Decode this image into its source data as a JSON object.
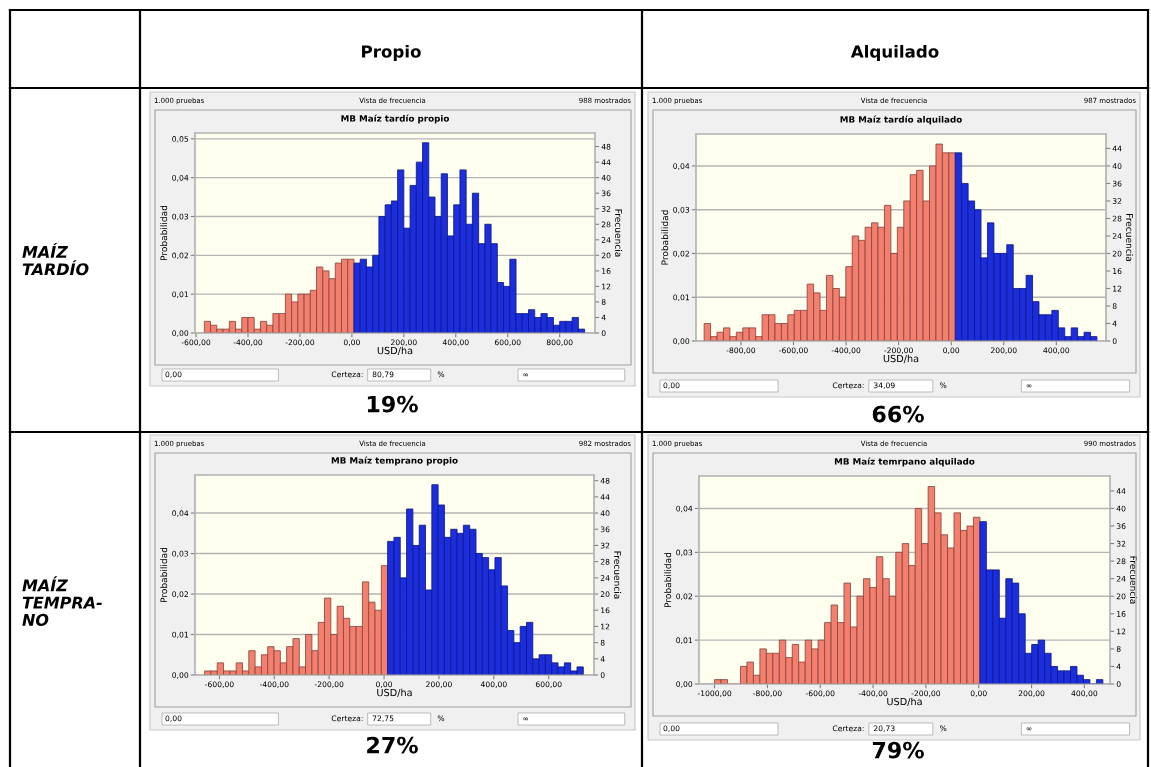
{
  "chart_data": [
    {
      "type": "other",
      "annotations": [
        "Propio",
        "Alquilado",
        "MAÍZ\nTARDÍO",
        "MAÍZ\nTEMPRA-\nNO"
      ]
    },
    {
      "type": "histogram",
      "title": "MB Maíz tardío propio",
      "xlabel": "USD/ha",
      "ylabel": "Probabilidad",
      "y2label": "Frecuencia",
      "bins": [
        -568,
        -544,
        -520,
        -496,
        -472,
        -448,
        -424,
        -400,
        -376,
        -352,
        -328,
        -304,
        -280,
        -256,
        -232,
        -208,
        -184,
        -160,
        -136,
        -112,
        -88,
        -64,
        -40,
        -16,
        8,
        32,
        56,
        80,
        104,
        128,
        152,
        176,
        200,
        224,
        248,
        272,
        296,
        320,
        344,
        368,
        392,
        416,
        440,
        464,
        488,
        512,
        536,
        560,
        584,
        608,
        632,
        656,
        680,
        704,
        728,
        752,
        776,
        800,
        824,
        848,
        872,
        896
      ],
      "values": [
        0.003,
        0.002,
        0.001,
        0.001,
        0.003,
        0.001,
        0.004,
        0.004,
        0.001,
        0.003,
        0.002,
        0.005,
        0.005,
        0.01,
        0.008,
        0.01,
        0.01,
        0.011,
        0.017,
        0.016,
        0.014,
        0.018,
        0.019,
        0.019,
        0.018,
        0.019,
        0.017,
        0.02,
        0.03,
        0.033,
        0.034,
        0.042,
        0.027,
        0.038,
        0.044,
        0.049,
        0.035,
        0.03,
        0.041,
        0.025,
        0.033,
        0.042,
        0.028,
        0.036,
        0.023,
        0.028,
        0.023,
        0.013,
        0.012,
        0.019,
        0.005,
        0.005,
        0.006,
        0.004,
        0.005,
        0.004,
        0.002,
        0.003,
        0.003,
        0.004,
        0.001
      ],
      "colors": [
        "#f47f6e",
        "#f47f6e",
        "#f47f6e",
        "#f47f6e",
        "#f47f6e",
        "#f47f6e",
        "#f47f6e",
        "#f47f6e",
        "#f47f6e",
        "#f47f6e",
        "#f47f6e",
        "#f47f6e",
        "#f47f6e",
        "#f47f6e",
        "#f47f6e",
        "#f47f6e",
        "#f47f6e",
        "#f47f6e",
        "#f47f6e",
        "#f47f6e",
        "#f47f6e",
        "#f47f6e",
        "#f47f6e",
        "#f47f6e",
        "#1c2de0",
        "#1c2de0",
        "#1c2de0",
        "#1c2de0",
        "#1c2de0",
        "#1c2de0",
        "#1c2de0",
        "#1c2de0",
        "#1c2de0",
        "#1c2de0",
        "#1c2de0",
        "#1c2de0",
        "#1c2de0",
        "#1c2de0",
        "#1c2de0",
        "#1c2de0",
        "#1c2de0",
        "#1c2de0",
        "#1c2de0",
        "#1c2de0",
        "#1c2de0",
        "#1c2de0",
        "#1c2de0",
        "#1c2de0",
        "#1c2de0",
        "#1c2de0",
        "#1c2de0",
        "#1c2de0",
        "#1c2de0",
        "#1c2de0",
        "#1c2de0",
        "#1c2de0",
        "#1c2de0",
        "#1c2de0",
        "#1c2de0",
        "#1c2de0",
        "#1c2de0"
      ],
      "xlim": [
        -604,
        936
      ],
      "xticks": [
        {
          "value": -600,
          "label": "-600,00"
        },
        {
          "value": -400,
          "label": "-400,00"
        },
        {
          "value": -200,
          "label": "-200,00"
        },
        {
          "value": 0,
          "label": "0,00"
        },
        {
          "value": 200,
          "label": "200,00"
        },
        {
          "value": 400,
          "label": "400,00"
        },
        {
          "value": 600,
          "label": "600,00"
        },
        {
          "value": 800,
          "label": "800,00"
        }
      ],
      "ylim": [
        0,
        0.0515
      ],
      "yticks": [
        {
          "value": 0,
          "label": "0,00"
        },
        {
          "value": 0.01,
          "label": "0,01"
        },
        {
          "value": 0.02,
          "label": "0,02"
        },
        {
          "value": 0.03,
          "label": "0,03"
        },
        {
          "value": 0.04,
          "label": "0,04"
        },
        {
          "value": 0.05,
          "label": "0,05"
        }
      ],
      "y2lim": [
        0,
        51.5
      ],
      "y2ticks": [
        0,
        4,
        8,
        12,
        16,
        20,
        24,
        28,
        32,
        36,
        40,
        44,
        48
      ],
      "grid": "y",
      "annotations": [
        "1.000 pruebas",
        "Vista de frecuencia",
        "988 mostrados",
        "0,00",
        "Certeza:",
        "80,79",
        "%",
        "∞",
        "19%"
      ]
    },
    {
      "type": "histogram",
      "title": "MB Maíz tardío alquilado",
      "xlabel": "USD/ha",
      "ylabel": "Probabilidad",
      "y2label": "Frecuencia",
      "bins": [
        -940,
        -915.5,
        -891,
        -866.5,
        -842,
        -817.5,
        -793,
        -768.5,
        -744,
        -719.5,
        -695,
        -670.5,
        -646,
        -621.5,
        -597,
        -572.5,
        -548,
        -523.5,
        -499,
        -474.5,
        -450,
        -425.5,
        -401,
        -376.5,
        -352,
        -327.5,
        -303,
        -278.5,
        -254,
        -229.5,
        -205,
        -180.5,
        -156,
        -131.5,
        -107,
        -82.5,
        -58,
        -33.5,
        -9,
        15.5,
        40,
        64.5,
        89,
        113.5,
        138,
        162.5,
        187,
        211.5,
        236,
        260.5,
        285,
        309.5,
        334,
        358.5,
        383,
        407.5,
        432,
        456.5,
        481,
        505.5,
        530,
        554.5
      ],
      "values": [
        0.004,
        0.001,
        0.002,
        0.003,
        0.001,
        0.002,
        0.003,
        0.003,
        0.001,
        0.006,
        0.006,
        0.004,
        0.004,
        0.006,
        0.007,
        0.007,
        0.013,
        0.011,
        0.007,
        0.015,
        0.012,
        0.01,
        0.017,
        0.024,
        0.023,
        0.026,
        0.027,
        0.026,
        0.031,
        0.02,
        0.026,
        0.032,
        0.038,
        0.039,
        0.032,
        0.04,
        0.045,
        0.043,
        0.043,
        0.043,
        0.036,
        0.032,
        0.03,
        0.019,
        0.027,
        0.02,
        0.02,
        0.022,
        0.012,
        0.012,
        0.015,
        0.009,
        0.006,
        0.006,
        0.007,
        0.003,
        0.001,
        0.003,
        0.001,
        0.002,
        0.001
      ],
      "colors": [
        "#f47f6e",
        "#f47f6e",
        "#f47f6e",
        "#f47f6e",
        "#f47f6e",
        "#f47f6e",
        "#f47f6e",
        "#f47f6e",
        "#f47f6e",
        "#f47f6e",
        "#f47f6e",
        "#f47f6e",
        "#f47f6e",
        "#f47f6e",
        "#f47f6e",
        "#f47f6e",
        "#f47f6e",
        "#f47f6e",
        "#f47f6e",
        "#f47f6e",
        "#f47f6e",
        "#f47f6e",
        "#f47f6e",
        "#f47f6e",
        "#f47f6e",
        "#f47f6e",
        "#f47f6e",
        "#f47f6e",
        "#f47f6e",
        "#f47f6e",
        "#f47f6e",
        "#f47f6e",
        "#f47f6e",
        "#f47f6e",
        "#f47f6e",
        "#f47f6e",
        "#f47f6e",
        "#f47f6e",
        "#f47f6e",
        "#1c2de0",
        "#1c2de0",
        "#1c2de0",
        "#1c2de0",
        "#1c2de0",
        "#1c2de0",
        "#1c2de0",
        "#1c2de0",
        "#1c2de0",
        "#1c2de0",
        "#1c2de0",
        "#1c2de0",
        "#1c2de0",
        "#1c2de0",
        "#1c2de0",
        "#1c2de0",
        "#1c2de0",
        "#1c2de0",
        "#1c2de0",
        "#1c2de0",
        "#1c2de0",
        "#1c2de0"
      ],
      "xlim": [
        -971,
        589
      ],
      "xticks": [
        {
          "value": -800,
          "label": "-800,00"
        },
        {
          "value": -600,
          "label": "-600,00"
        },
        {
          "value": -400,
          "label": "-400,00"
        },
        {
          "value": -200,
          "label": "-200,00"
        },
        {
          "value": 0,
          "label": "0,00"
        },
        {
          "value": 200,
          "label": "200,00"
        },
        {
          "value": 400,
          "label": "400,00"
        }
      ],
      "ylim": [
        0,
        0.0473
      ],
      "yticks": [
        {
          "value": 0,
          "label": "0,00"
        },
        {
          "value": 0.01,
          "label": "0,01"
        },
        {
          "value": 0.02,
          "label": "0,02"
        },
        {
          "value": 0.03,
          "label": "0,03"
        },
        {
          "value": 0.04,
          "label": "0,04"
        }
      ],
      "y2lim": [
        0,
        47.3
      ],
      "y2ticks": [
        0,
        4,
        8,
        12,
        16,
        20,
        24,
        28,
        32,
        36,
        40,
        44
      ],
      "grid": "y",
      "annotations": [
        "1.000 pruebas",
        "Vista de frecuencia",
        "987 mostrados",
        "0,00",
        "Certeza:",
        "34,09",
        "%",
        "∞",
        "66%"
      ]
    },
    {
      "type": "histogram",
      "title": "MB Maíz temprano propio",
      "xlabel": "USD/ha",
      "ylabel": "Probabilidad",
      "y2label": "Frecuencia",
      "bins": [
        -654,
        -631,
        -608,
        -585,
        -562,
        -539,
        -516,
        -493,
        -470,
        -447,
        -424,
        -401,
        -378,
        -355,
        -332,
        -309,
        -286,
        -263,
        -240,
        -217,
        -194,
        -171,
        -148,
        -125,
        -102,
        -79,
        -56,
        -33,
        -10,
        13,
        36,
        59,
        82,
        105,
        128,
        151,
        174,
        197,
        220,
        243,
        266,
        289,
        312,
        335,
        358,
        381,
        404,
        427,
        450,
        473,
        496,
        519,
        542,
        565,
        588,
        611,
        634,
        657,
        680,
        703,
        726
      ],
      "values": [
        0.001,
        0.001,
        0.003,
        0.001,
        0.001,
        0.003,
        0.001,
        0.006,
        0.002,
        0.005,
        0.007,
        0.006,
        0.003,
        0.007,
        0.009,
        0.002,
        0.01,
        0.006,
        0.013,
        0.019,
        0.01,
        0.017,
        0.014,
        0.012,
        0.012,
        0.023,
        0.018,
        0.016,
        0.027,
        0.033,
        0.034,
        0.024,
        0.041,
        0.032,
        0.037,
        0.021,
        0.047,
        0.042,
        0.034,
        0.036,
        0.035,
        0.037,
        0.036,
        0.03,
        0.029,
        0.026,
        0.029,
        0.022,
        0.011,
        0.008,
        0.012,
        0.013,
        0.004,
        0.005,
        0.005,
        0.003,
        0.002,
        0.003,
        0.001,
        0.002
      ],
      "colors": [
        "#f47f6e",
        "#f47f6e",
        "#f47f6e",
        "#f47f6e",
        "#f47f6e",
        "#f47f6e",
        "#f47f6e",
        "#f47f6e",
        "#f47f6e",
        "#f47f6e",
        "#f47f6e",
        "#f47f6e",
        "#f47f6e",
        "#f47f6e",
        "#f47f6e",
        "#f47f6e",
        "#f47f6e",
        "#f47f6e",
        "#f47f6e",
        "#f47f6e",
        "#f47f6e",
        "#f47f6e",
        "#f47f6e",
        "#f47f6e",
        "#f47f6e",
        "#f47f6e",
        "#f47f6e",
        "#f47f6e",
        "#f47f6e",
        "#1c2de0",
        "#1c2de0",
        "#1c2de0",
        "#1c2de0",
        "#1c2de0",
        "#1c2de0",
        "#1c2de0",
        "#1c2de0",
        "#1c2de0",
        "#1c2de0",
        "#1c2de0",
        "#1c2de0",
        "#1c2de0",
        "#1c2de0",
        "#1c2de0",
        "#1c2de0",
        "#1c2de0",
        "#1c2de0",
        "#1c2de0",
        "#1c2de0",
        "#1c2de0",
        "#1c2de0",
        "#1c2de0",
        "#1c2de0",
        "#1c2de0",
        "#1c2de0",
        "#1c2de0",
        "#1c2de0",
        "#1c2de0",
        "#1c2de0",
        "#1c2de0"
      ],
      "xlim": [
        -689,
        765
      ],
      "xticks": [
        {
          "value": -600,
          "label": "-600,00"
        },
        {
          "value": -400,
          "label": "-400,00"
        },
        {
          "value": -200,
          "label": "-200,00"
        },
        {
          "value": 0,
          "label": "0,00"
        },
        {
          "value": 200,
          "label": "200,00"
        },
        {
          "value": 400,
          "label": "400,00"
        },
        {
          "value": 600,
          "label": "600,00"
        }
      ],
      "ylim": [
        0,
        0.0494
      ],
      "yticks": [
        {
          "value": 0,
          "label": "0,00"
        },
        {
          "value": 0.01,
          "label": "0,01"
        },
        {
          "value": 0.02,
          "label": "0,02"
        },
        {
          "value": 0.03,
          "label": "0,03"
        },
        {
          "value": 0.04,
          "label": "0,04"
        }
      ],
      "y2lim": [
        0,
        49.4
      ],
      "y2ticks": [
        0,
        4,
        8,
        12,
        16,
        20,
        24,
        28,
        32,
        36,
        40,
        44,
        48
      ],
      "grid": "y",
      "annotations": [
        "1.000 pruebas",
        "Vista de frecuencia",
        "982 mostrados",
        "0,00",
        "Certeza:",
        "72,75",
        "%",
        "∞",
        "27%"
      ]
    },
    {
      "type": "histogram",
      "title": "MB Maíz temrpano alquilado",
      "xlabel": "USD/ha",
      "ylabel": "Probabilidad",
      "y2label": "Frecuencia",
      "bins": [
        -1000,
        -975.5,
        -951,
        -926.5,
        -902,
        -877.5,
        -853,
        -828.5,
        -804,
        -779.5,
        -755,
        -730.5,
        -706,
        -681.5,
        -657,
        -632.5,
        -608,
        -583.5,
        -559,
        -534.5,
        -510,
        -485.5,
        -461,
        -436.5,
        -412,
        -387.5,
        -363,
        -338.5,
        -314,
        -289.5,
        -265,
        -240.5,
        -216,
        -191.5,
        -167,
        -142.5,
        -118,
        -93.5,
        -69,
        -44.5,
        -20,
        4.5,
        29,
        53.5,
        78,
        102.5,
        127,
        151.5,
        176,
        200.5,
        225,
        249.5,
        274,
        298.5,
        323,
        347.5,
        372,
        396.5,
        421,
        445.5,
        470
      ],
      "values": [
        0.001,
        0.001,
        0,
        0,
        0.004,
        0.005,
        0.002,
        0.008,
        0.007,
        0.007,
        0.01,
        0.006,
        0.009,
        0.005,
        0.01,
        0.008,
        0.01,
        0.014,
        0.018,
        0.014,
        0.023,
        0.013,
        0.02,
        0.024,
        0.022,
        0.029,
        0.024,
        0.02,
        0.03,
        0.032,
        0.027,
        0.04,
        0.032,
        0.045,
        0.039,
        0.034,
        0.031,
        0.039,
        0.035,
        0.036,
        0.038,
        0.037,
        0.026,
        0.026,
        0.015,
        0.024,
        0.023,
        0.016,
        0.007,
        0.009,
        0.01,
        0.007,
        0.004,
        0.003,
        0.003,
        0.004,
        0.002,
        0.001,
        0,
        0.001
      ],
      "colors": [
        "#f47f6e",
        "#f47f6e",
        "#f47f6e",
        "#f47f6e",
        "#f47f6e",
        "#f47f6e",
        "#f47f6e",
        "#f47f6e",
        "#f47f6e",
        "#f47f6e",
        "#f47f6e",
        "#f47f6e",
        "#f47f6e",
        "#f47f6e",
        "#f47f6e",
        "#f47f6e",
        "#f47f6e",
        "#f47f6e",
        "#f47f6e",
        "#f47f6e",
        "#f47f6e",
        "#f47f6e",
        "#f47f6e",
        "#f47f6e",
        "#f47f6e",
        "#f47f6e",
        "#f47f6e",
        "#f47f6e",
        "#f47f6e",
        "#f47f6e",
        "#f47f6e",
        "#f47f6e",
        "#f47f6e",
        "#f47f6e",
        "#f47f6e",
        "#f47f6e",
        "#f47f6e",
        "#f47f6e",
        "#f47f6e",
        "#f47f6e",
        "#f47f6e",
        "#1c2de0",
        "#1c2de0",
        "#1c2de0",
        "#1c2de0",
        "#1c2de0",
        "#1c2de0",
        "#1c2de0",
        "#1c2de0",
        "#1c2de0",
        "#1c2de0",
        "#1c2de0",
        "#1c2de0",
        "#1c2de0",
        "#1c2de0",
        "#1c2de0",
        "#1c2de0",
        "#1c2de0",
        "#1c2de0",
        "#1c2de0"
      ],
      "xlim": [
        -1059,
        497
      ],
      "xticks": [
        {
          "value": -1000,
          "label": "-1000,00"
        },
        {
          "value": -800,
          "label": "-800,00"
        },
        {
          "value": -600,
          "label": "-600,00"
        },
        {
          "value": -400,
          "label": "-400,00"
        },
        {
          "value": -200,
          "label": "-200,00"
        },
        {
          "value": 0,
          "label": "0,00"
        },
        {
          "value": 200,
          "label": "200,00"
        },
        {
          "value": 400,
          "label": "400,00"
        }
      ],
      "ylim": [
        0,
        0.0474
      ],
      "yticks": [
        {
          "value": 0,
          "label": "0,00"
        },
        {
          "value": 0.01,
          "label": "0,01"
        },
        {
          "value": 0.02,
          "label": "0,02"
        },
        {
          "value": 0.03,
          "label": "0,03"
        },
        {
          "value": 0.04,
          "label": "0,04"
        }
      ],
      "y2lim": [
        0,
        47.4
      ],
      "y2ticks": [
        0,
        4,
        8,
        12,
        16,
        20,
        24,
        28,
        32,
        36,
        40,
        44
      ],
      "grid": "y",
      "annotations": [
        "1.000 pruebas",
        "Vista de frecuencia",
        "990 mostrados",
        "0,00",
        "Certeza:",
        "20,73",
        "%",
        "∞",
        "79%"
      ]
    }
  ]
}
